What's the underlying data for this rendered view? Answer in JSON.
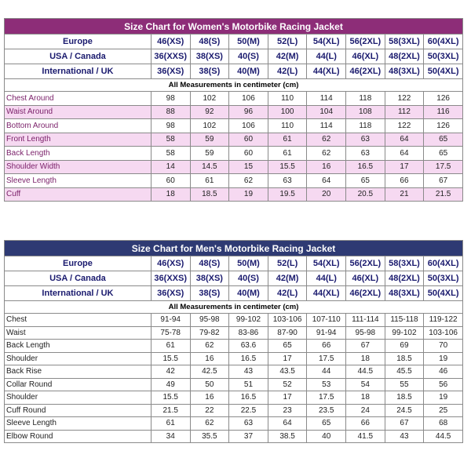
{
  "women": {
    "title": "Size Chart for Women's Motorbike Racing Jacket",
    "header_rows": [
      {
        "label": "Europe",
        "values": [
          "46(XS)",
          "48(S)",
          "50(M)",
          "52(L)",
          "54(XL)",
          "56(2XL)",
          "58(3XL)",
          "60(4XL)"
        ]
      },
      {
        "label": "USA / Canada",
        "values": [
          "36(XXS)",
          "38(XS)",
          "40(S)",
          "42(M)",
          "44(L)",
          "46(XL)",
          "48(2XL)",
          "50(3XL)"
        ]
      },
      {
        "label": "International / UK",
        "values": [
          "36(XS)",
          "38(S)",
          "40(M)",
          "42(L)",
          "44(XL)",
          "46(2XL)",
          "48(3XL)",
          "50(4XL)"
        ]
      }
    ],
    "note": "All Measurements in centimeter (cm)",
    "rows": [
      {
        "label": "Chest Around",
        "values": [
          "98",
          "102",
          "106",
          "110",
          "114",
          "118",
          "122",
          "126"
        ]
      },
      {
        "label": "Waist Around",
        "values": [
          "88",
          "92",
          "96",
          "100",
          "104",
          "108",
          "112",
          "116"
        ]
      },
      {
        "label": "Bottom Around",
        "values": [
          "98",
          "102",
          "106",
          "110",
          "114",
          "118",
          "122",
          "126"
        ]
      },
      {
        "label": "Front Length",
        "values": [
          "58",
          "59",
          "60",
          "61",
          "62",
          "63",
          "64",
          "65"
        ]
      },
      {
        "label": "Back Length",
        "values": [
          "58",
          "59",
          "60",
          "61",
          "62",
          "63",
          "64",
          "65"
        ]
      },
      {
        "label": "Shoulder Width",
        "values": [
          "14",
          "14.5",
          "15",
          "15.5",
          "16",
          "16.5",
          "17",
          "17.5"
        ]
      },
      {
        "label": "Sleeve Length",
        "values": [
          "60",
          "61",
          "62",
          "63",
          "64",
          "65",
          "66",
          "67"
        ]
      },
      {
        "label": "Cuff",
        "values": [
          "18",
          "18.5",
          "19",
          "19.5",
          "20",
          "20.5",
          "21",
          "21.5"
        ]
      }
    ]
  },
  "men": {
    "title": "Size Chart for Men's Motorbike Racing Jacket",
    "header_rows": [
      {
        "label": "Europe",
        "values": [
          "46(XS)",
          "48(S)",
          "50(M)",
          "52(L)",
          "54(XL)",
          "56(2XL)",
          "58(3XL)",
          "60(4XL)"
        ]
      },
      {
        "label": "USA / Canada",
        "values": [
          "36(XXS)",
          "38(XS)",
          "40(S)",
          "42(M)",
          "44(L)",
          "46(XL)",
          "48(2XL)",
          "50(3XL)"
        ]
      },
      {
        "label": "International / UK",
        "values": [
          "36(XS)",
          "38(S)",
          "40(M)",
          "42(L)",
          "44(XL)",
          "46(2XL)",
          "48(3XL)",
          "50(4XL)"
        ]
      }
    ],
    "note": "All Measurements in centimeter (cm)",
    "rows": [
      {
        "label": "Chest",
        "values": [
          "91-94",
          "95-98",
          "99-102",
          "103-106",
          "107-110",
          "111-114",
          "115-118",
          "119-122"
        ]
      },
      {
        "label": "Waist",
        "values": [
          "75-78",
          "79-82",
          "83-86",
          "87-90",
          "91-94",
          "95-98",
          "99-102",
          "103-106"
        ]
      },
      {
        "label": "Back Length",
        "values": [
          "61",
          "62",
          "63.6",
          "65",
          "66",
          "67",
          "69",
          "70"
        ]
      },
      {
        "label": "Shoulder",
        "values": [
          "15.5",
          "16",
          "16.5",
          "17",
          "17.5",
          "18",
          "18.5",
          "19"
        ]
      },
      {
        "label": "Back Rise",
        "values": [
          "42",
          "42.5",
          "43",
          "43.5",
          "44",
          "44.5",
          "45.5",
          "46"
        ]
      },
      {
        "label": "Collar Round",
        "values": [
          "49",
          "50",
          "51",
          "52",
          "53",
          "54",
          "55",
          "56"
        ]
      },
      {
        "label": "Shoulder",
        "values": [
          "15.5",
          "16",
          "16.5",
          "17",
          "17.5",
          "18",
          "18.5",
          "19"
        ]
      },
      {
        "label": "Cuff Round",
        "values": [
          "21.5",
          "22",
          "22.5",
          "23",
          "23.5",
          "24",
          "24.5",
          "25"
        ]
      },
      {
        "label": "Sleeve Length",
        "values": [
          "61",
          "62",
          "63",
          "64",
          "65",
          "66",
          "67",
          "68"
        ]
      },
      {
        "label": "Elbow Round",
        "values": [
          "34",
          "35.5",
          "37",
          "38.5",
          "40",
          "41.5",
          "43",
          "44.5"
        ]
      }
    ]
  }
}
